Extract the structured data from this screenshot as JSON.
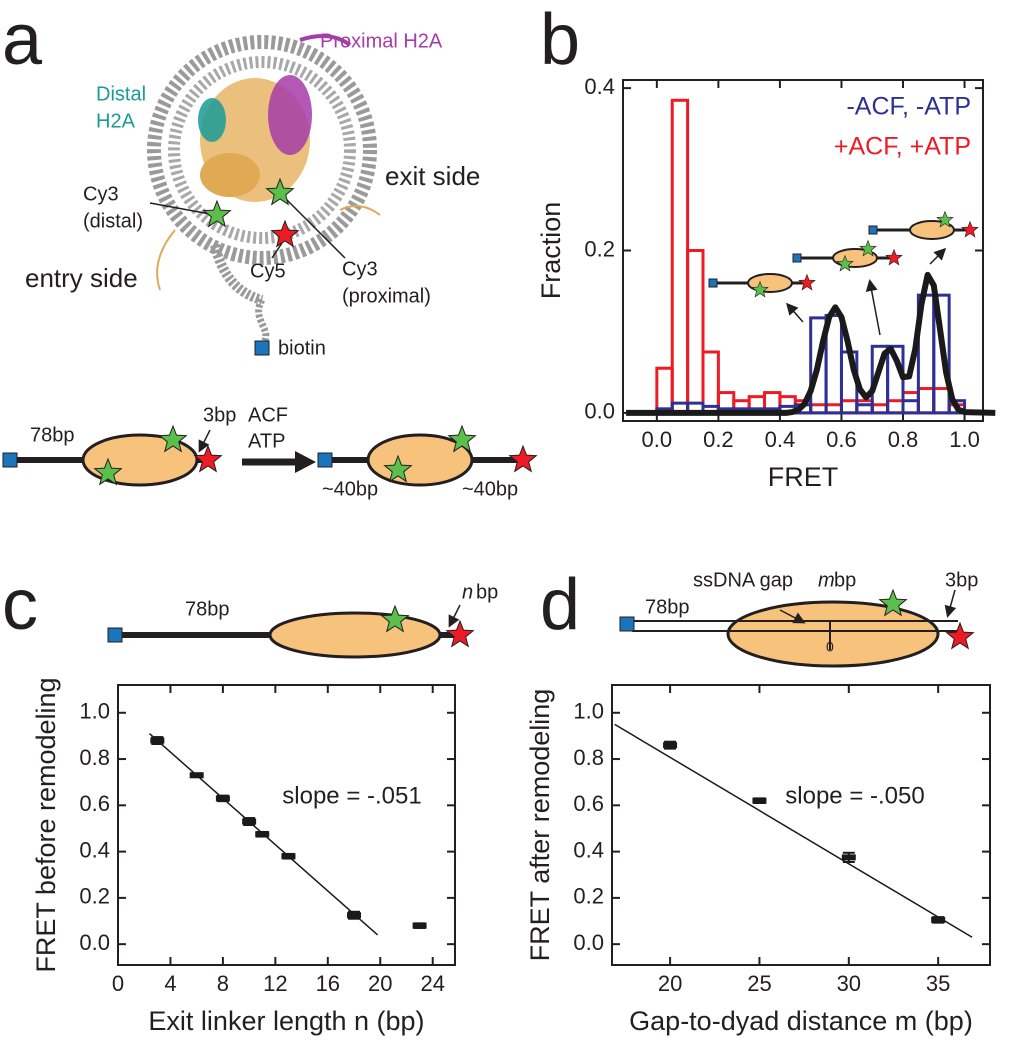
{
  "panel_labels": [
    "a",
    "b",
    "c",
    "d"
  ],
  "diagram_a": {
    "proximal_h2a": "Proximal H2A",
    "distal_h2a": [
      "Distal",
      "H2A"
    ],
    "exit_side": "exit side",
    "entry_side": "entry side",
    "cy3_distal": [
      "Cy3",
      "(distal)"
    ],
    "cy5": "Cy5",
    "cy3_proximal": [
      "Cy3",
      "(proximal)"
    ],
    "biotin": "biotin",
    "linker_78": "78bp",
    "linker_3": "3bp",
    "enzyme": [
      "ACF",
      "ATP"
    ],
    "after_left": "~40bp",
    "after_right": "~40bp"
  },
  "diagram_c": {
    "linker_78": "78bp",
    "n": "n",
    "bp": "bp"
  },
  "diagram_d": {
    "gap": "ssDNA gap",
    "m": "m",
    "bp": "bp",
    "linker_78": "78bp",
    "linker_3": "3bp",
    "dyad": "0"
  },
  "chart_data": [
    {
      "type": "histogram",
      "xlabel": "FRET",
      "ylabel": "Fraction",
      "bins": [
        0,
        0.05,
        0.1,
        0.15,
        0.2,
        0.25,
        0.3,
        0.35,
        0.4,
        0.45,
        0.5,
        0.55,
        0.6,
        0.65,
        0.7,
        0.75,
        0.8,
        0.85,
        0.9,
        0.95,
        1.0
      ],
      "series": [
        {
          "name": "-ACF, -ATP",
          "color": "#2e3192",
          "values": [
            0.005,
            0.012,
            0.012,
            0.008,
            0.005,
            0.005,
            0.005,
            0.005,
            0.008,
            0.01,
            0.117,
            0.12,
            0.075,
            0.01,
            0.082,
            0.082,
            0.015,
            0.145,
            0.145,
            0.015
          ]
        },
        {
          "name": "+ACF, +ATP",
          "color": "#ed1c24",
          "values": [
            0.055,
            0.385,
            0.2,
            0.075,
            0.025,
            0.015,
            0.02,
            0.025,
            0.02,
            0.015,
            0.01,
            0.01,
            0.015,
            0.015,
            0.01,
            0.015,
            0.025,
            0.03,
            0.03,
            0.01
          ]
        }
      ],
      "fit": {
        "color": "#1a1a1a",
        "x": [
          -0.1,
          0.42,
          0.44,
          0.46,
          0.48,
          0.5,
          0.52,
          0.54,
          0.56,
          0.58,
          0.6,
          0.62,
          0.64,
          0.66,
          0.68,
          0.7,
          0.72,
          0.74,
          0.76,
          0.78,
          0.8,
          0.82,
          0.84,
          0.86,
          0.88,
          0.9,
          0.92,
          0.94,
          0.96,
          0.98,
          1.0,
          1.1
        ],
        "y": [
          0,
          0,
          0.001,
          0.004,
          0.011,
          0.027,
          0.053,
          0.088,
          0.118,
          0.13,
          0.118,
          0.088,
          0.053,
          0.029,
          0.019,
          0.027,
          0.05,
          0.073,
          0.079,
          0.064,
          0.044,
          0.045,
          0.079,
          0.134,
          0.17,
          0.157,
          0.104,
          0.05,
          0.017,
          0.004,
          0.001,
          0
        ]
      },
      "xlim": [
        -0.11,
        1.06
      ],
      "ylim": [
        -0.01,
        0.41
      ],
      "xticks": [
        {
          "value": 0,
          "label": "0.0"
        },
        0.2,
        0.4,
        0.6,
        0.8,
        {
          "value": 1,
          "label": "1.0"
        }
      ],
      "yticks": [
        {
          "value": 0,
          "label": "0.0"
        },
        0.2,
        0.4
      ],
      "legend": "upper right"
    },
    {
      "type": "scatter",
      "xlabel": "Exit linker length n (bp)",
      "ylabel": "FRET before remodeling",
      "x": [
        3,
        6,
        8,
        10,
        11,
        13,
        18,
        23
      ],
      "values": [
        0.88,
        0.73,
        0.63,
        0.53,
        0.475,
        0.38,
        0.125,
        0.08
      ],
      "errors": [
        0.015,
        0.008,
        0.012,
        0.015,
        0.01,
        0.01,
        0.015,
        0.01
      ],
      "color": "#1a1a1a",
      "fit": {
        "x": [
          2.4,
          19.8
        ],
        "y": [
          0.91,
          0.04
        ]
      },
      "annotation": "slope = -.051",
      "xlim": [
        0,
        25.7
      ],
      "ylim": [
        -0.09,
        1.12
      ],
      "xticks": [
        0,
        4,
        8,
        12,
        16,
        20,
        24
      ],
      "yticks": [
        {
          "value": 0,
          "label": "0.0"
        },
        0.2,
        0.4,
        0.6,
        0.8,
        {
          "value": 1,
          "label": "1.0"
        }
      ]
    },
    {
      "type": "scatter",
      "xlabel": "Gap-to-dyad distance m (bp)",
      "ylabel": "FRET after remodeling",
      "x": [
        20,
        25,
        30,
        35
      ],
      "values": [
        0.86,
        0.62,
        0.375,
        0.105
      ],
      "errors": [
        0.015,
        0.01,
        0.02,
        0.012
      ],
      "color": "#1a1a1a",
      "fit": {
        "x": [
          16.9,
          36.9
        ],
        "y": [
          0.95,
          0.03
        ]
      },
      "annotation": "slope = -.050",
      "xlim": [
        16.75,
        37.9
      ],
      "ylim": [
        -0.09,
        1.12
      ],
      "xticks": [
        20,
        25,
        30,
        35
      ],
      "yticks": [
        {
          "value": 0,
          "label": "0.0"
        },
        0.2,
        0.4,
        0.6,
        0.8,
        {
          "value": 1,
          "label": "1.0"
        }
      ]
    }
  ]
}
